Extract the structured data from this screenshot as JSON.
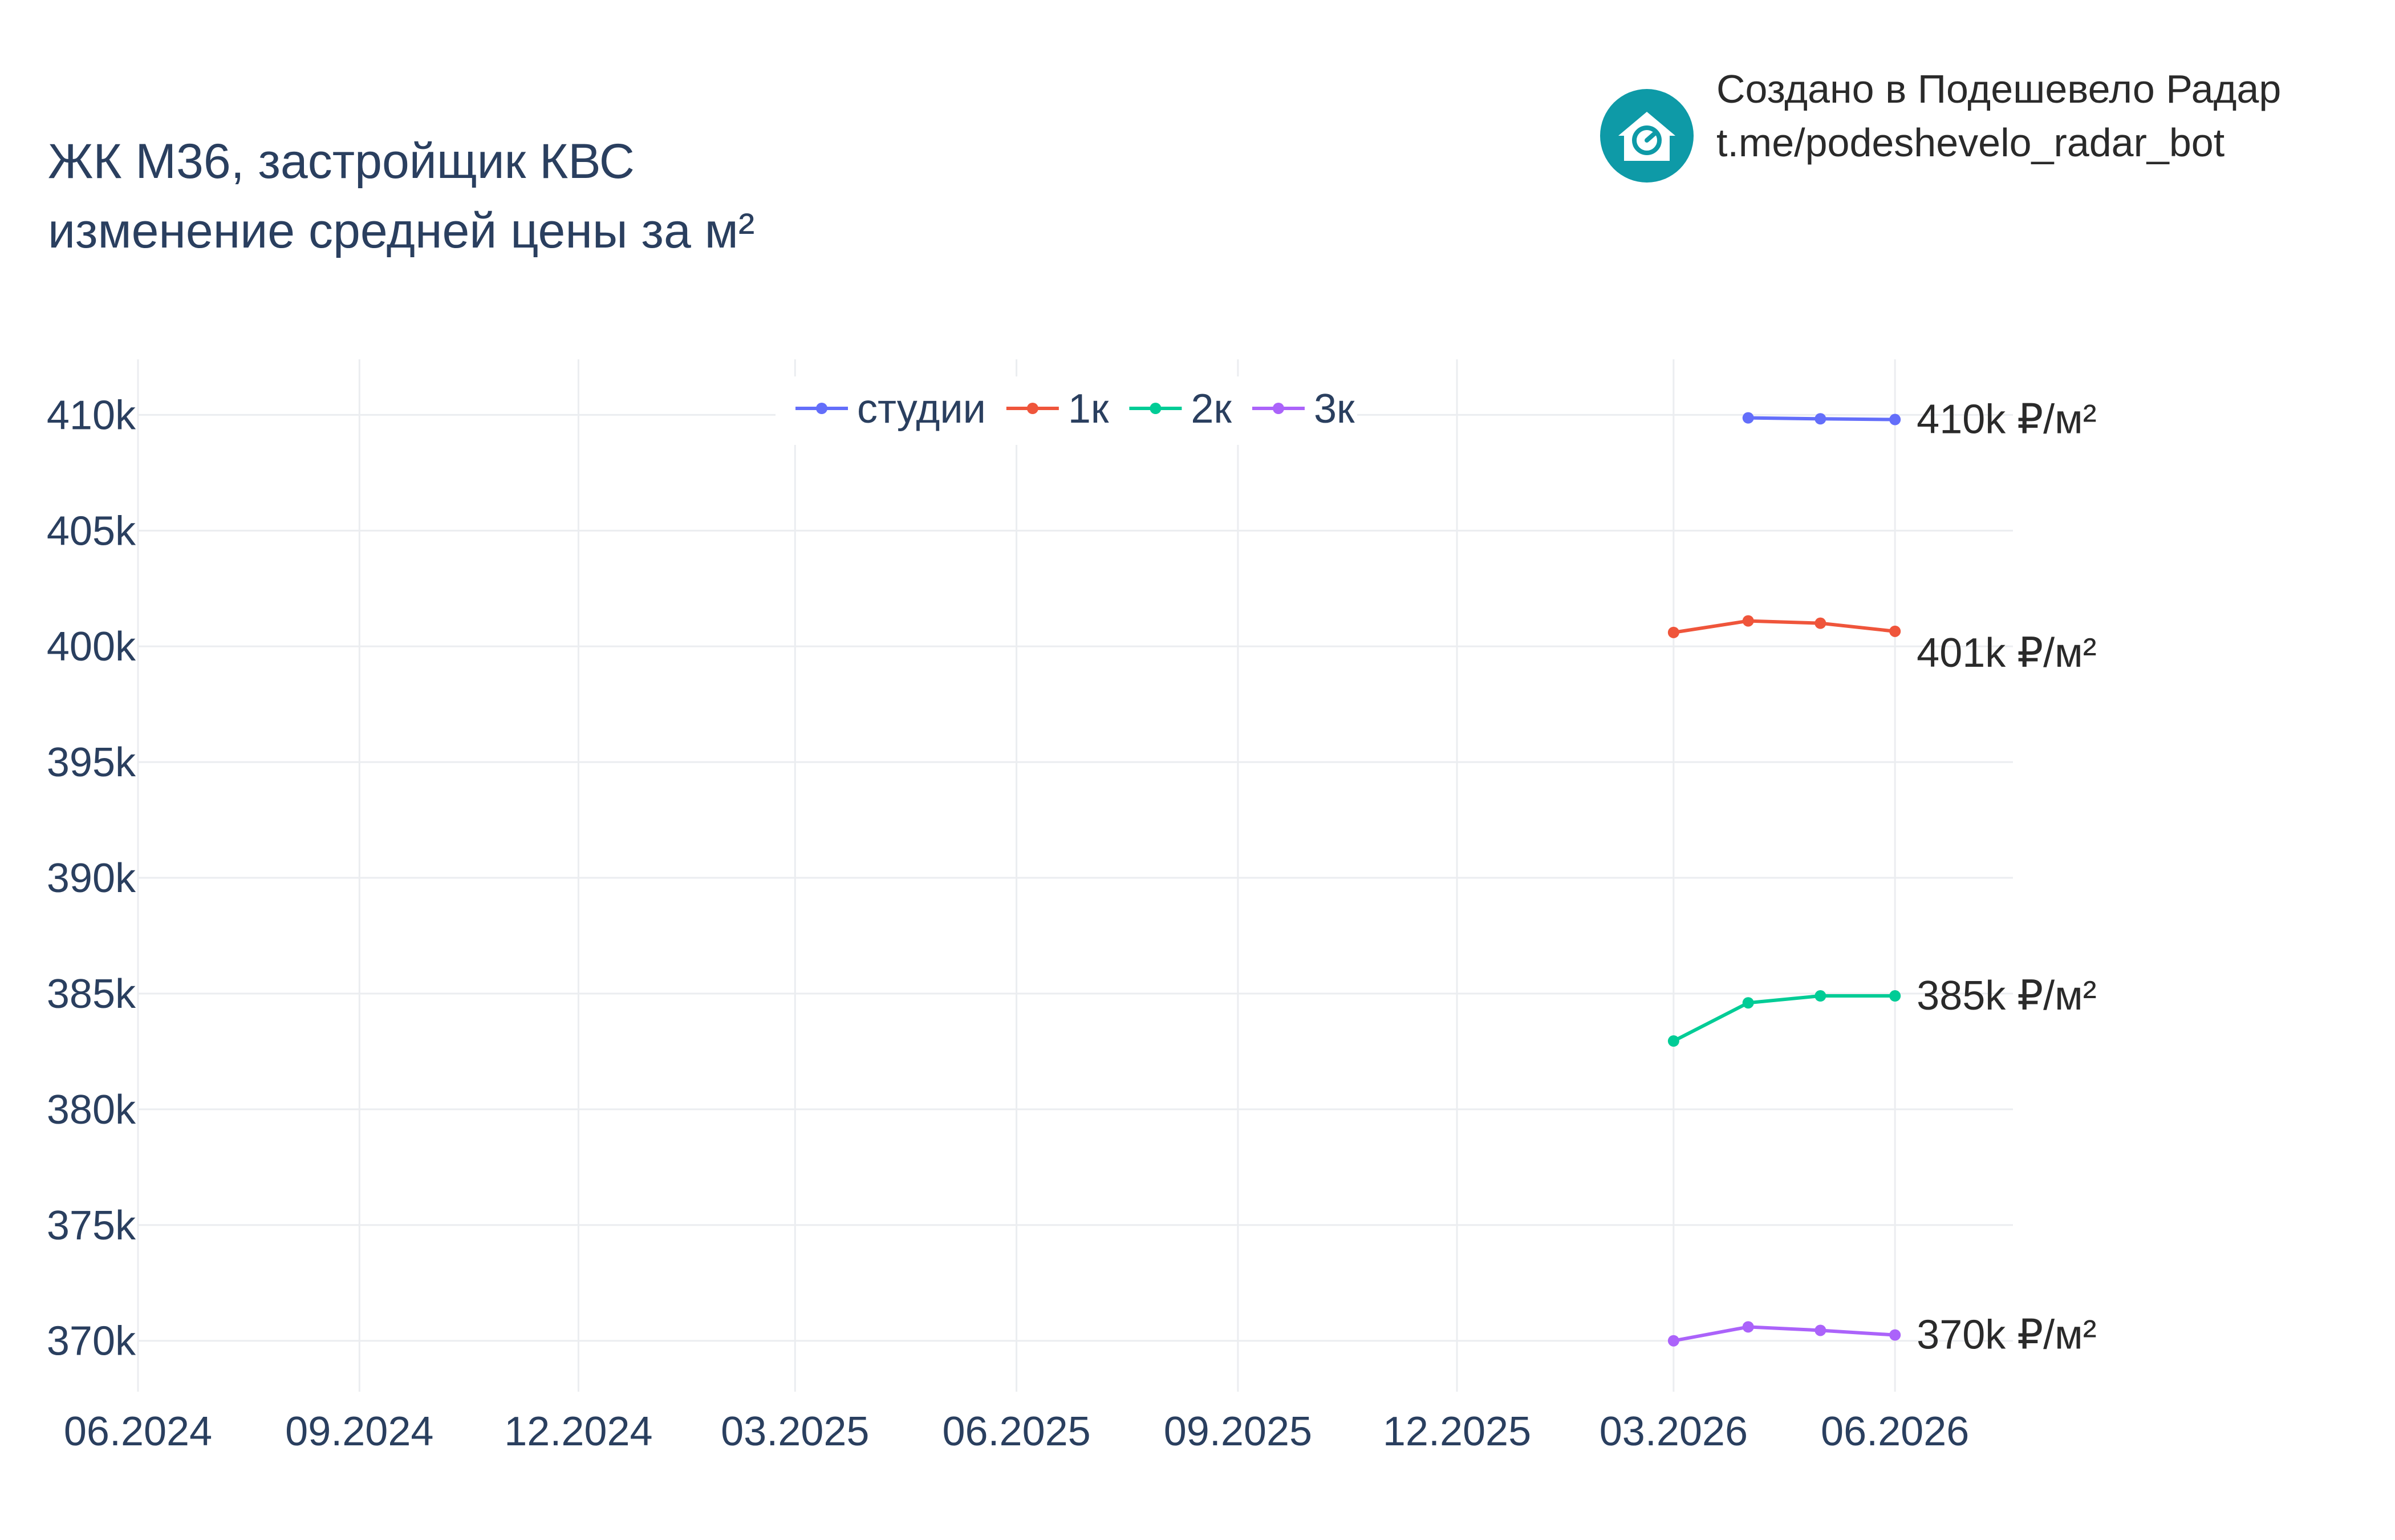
{
  "chart_data": {
    "type": "line",
    "title": [
      "ЖК М36, застройщик КВС",
      "изменение средней цены за м²"
    ],
    "xlabel": "",
    "ylabel": "",
    "x_ticks": [
      "06.2024",
      "09.2024",
      "12.2024",
      "03.2025",
      "06.2025",
      "09.2025",
      "12.2025",
      "03.2026",
      "06.2026"
    ],
    "y_ticks": [
      "370k",
      "375k",
      "380k",
      "385k",
      "390k",
      "395k",
      "400k",
      "405k",
      "410k"
    ],
    "ylim": [
      367800,
      412400
    ],
    "xlim": [
      "2024-06-01",
      "2026-07-20"
    ],
    "grid": true,
    "legend_position": "top-center",
    "series": [
      {
        "name": "студии",
        "color": "#636efa",
        "points": [
          {
            "x": "2026-04-01",
            "y": 409870
          },
          {
            "x": "2026-05-01",
            "y": 409830
          },
          {
            "x": "2026-06-01",
            "y": 409800
          }
        ],
        "end_label": "410k ₽/м²"
      },
      {
        "name": "1к",
        "color": "#ef553b",
        "points": [
          {
            "x": "2026-03-01",
            "y": 400600
          },
          {
            "x": "2026-04-01",
            "y": 401100
          },
          {
            "x": "2026-05-01",
            "y": 401000
          },
          {
            "x": "2026-06-01",
            "y": 400650
          }
        ],
        "end_label": "401k ₽/м²"
      },
      {
        "name": "2к",
        "color": "#00cc96",
        "points": [
          {
            "x": "2026-03-01",
            "y": 382950
          },
          {
            "x": "2026-04-01",
            "y": 384600
          },
          {
            "x": "2026-05-01",
            "y": 384900
          },
          {
            "x": "2026-06-01",
            "y": 384900
          }
        ],
        "end_label": "385k ₽/м²"
      },
      {
        "name": "3к",
        "color": "#ab63fa",
        "points": [
          {
            "x": "2026-03-01",
            "y": 370000
          },
          {
            "x": "2026-04-01",
            "y": 370600
          },
          {
            "x": "2026-05-01",
            "y": 370450
          },
          {
            "x": "2026-06-01",
            "y": 370250
          }
        ],
        "end_label": "370k ₽/м²"
      }
    ]
  },
  "credit": {
    "line1": "Создано в Подешевело Радар",
    "line2": "t.me/podeshevelo_radar_bot",
    "logo_color": "#0e9aa7",
    "logo_icon": "house-icon"
  }
}
